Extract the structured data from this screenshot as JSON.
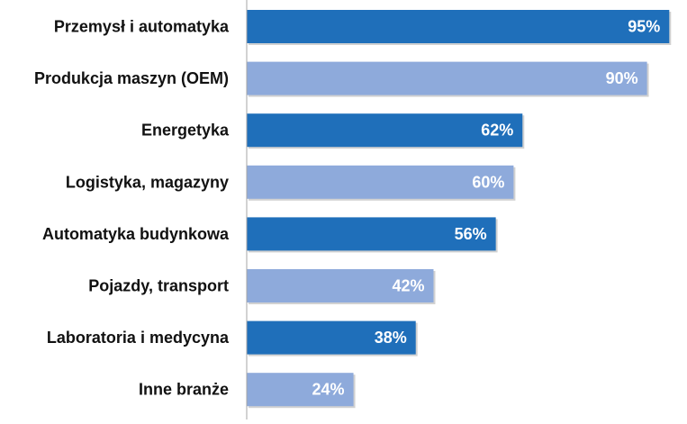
{
  "chart_data": {
    "type": "bar",
    "orientation": "horizontal",
    "categories": [
      "Przemysł i automatyka",
      "Produkcja maszyn (OEM)",
      "Energetyka",
      "Logistyka, magazyny",
      "Automatyka budynkowa",
      "Pojazdy, transport",
      "Laboratoria i medycyna",
      "Inne branże"
    ],
    "values": [
      95,
      90,
      62,
      60,
      56,
      42,
      38,
      24
    ],
    "value_labels": [
      "95%",
      "90%",
      "62%",
      "60%",
      "56%",
      "42%",
      "38%",
      "24%"
    ],
    "unit": "%",
    "xlim": [
      0,
      100
    ],
    "grid": false,
    "legend": "none",
    "title": "",
    "xlabel": "",
    "ylabel": "",
    "colors": {
      "dark": "#1f6fba",
      "light": "#8eaadb",
      "axis": "#a6a6a6"
    }
  }
}
